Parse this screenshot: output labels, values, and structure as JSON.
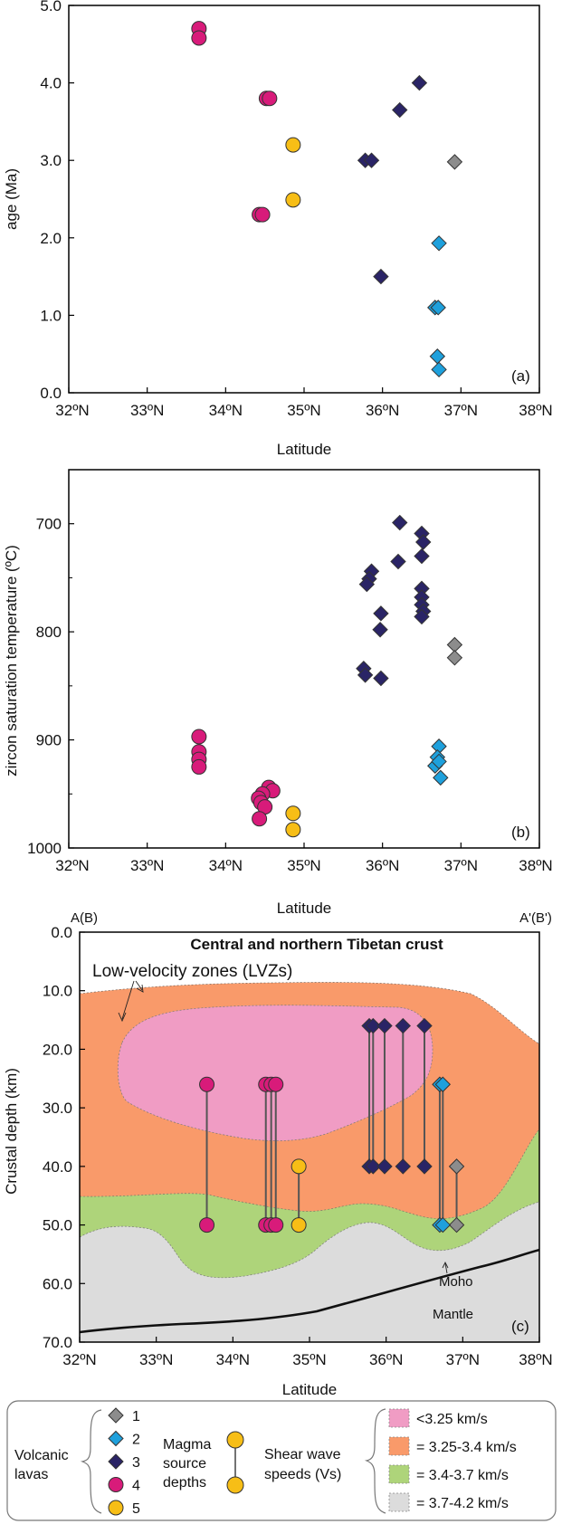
{
  "chart_data": [
    {
      "type": "scatter",
      "panel": "(a)",
      "xlabel": "Latitude",
      "ylabel": "age (Ma)",
      "xlim": [
        32,
        38
      ],
      "ylim": [
        0,
        5
      ],
      "x_tick_labels": [
        "32ºN",
        "33ºN",
        "34ºN",
        "35ºN",
        "36ºN",
        "37ºN",
        "38ºN"
      ],
      "y_tick_labels": [
        "0.0",
        "1.0",
        "2.0",
        "3.0",
        "4.0",
        "5.0"
      ],
      "series": [
        {
          "name": "1",
          "marker": "diamond",
          "color": "#8c8c8c",
          "points": [
            [
              36.92,
              2.98
            ]
          ]
        },
        {
          "name": "2",
          "marker": "diamond",
          "color": "#1ea0dc",
          "points": [
            [
              36.72,
              1.93
            ],
            [
              36.67,
              1.1
            ],
            [
              36.71,
              1.1
            ],
            [
              36.7,
              0.47
            ],
            [
              36.72,
              0.3
            ]
          ]
        },
        {
          "name": "3",
          "marker": "diamond",
          "color": "#2a2466",
          "points": [
            [
              36.47,
              4.0
            ],
            [
              36.22,
              3.65
            ],
            [
              35.78,
              3.0
            ],
            [
              35.86,
              3.0
            ],
            [
              35.98,
              1.5
            ]
          ]
        },
        {
          "name": "4",
          "marker": "circle",
          "color": "#d81b7a",
          "points": [
            [
              33.66,
              4.7
            ],
            [
              33.66,
              4.58
            ],
            [
              34.52,
              3.8
            ],
            [
              34.56,
              3.8
            ],
            [
              34.43,
              2.3
            ],
            [
              34.47,
              2.3
            ]
          ]
        },
        {
          "name": "5",
          "marker": "circle",
          "color": "#f7be16",
          "points": [
            [
              34.86,
              3.2
            ],
            [
              34.86,
              2.49
            ]
          ]
        }
      ]
    },
    {
      "type": "scatter",
      "panel": "(b)",
      "xlabel": "Latitude",
      "ylabel": "zircon saturation temperature (ºC)",
      "xlim": [
        32,
        38
      ],
      "ylim": [
        1000,
        650
      ],
      "inverted_y": true,
      "x_tick_labels": [
        "32ºN",
        "33ºN",
        "34ºN",
        "35ºN",
        "36ºN",
        "37ºN",
        "38ºN"
      ],
      "y_tick_labels": [
        "700",
        "800",
        "900",
        "1000"
      ],
      "series": [
        {
          "name": "1",
          "marker": "diamond",
          "color": "#8c8c8c",
          "points": [
            [
              36.92,
              812
            ],
            [
              36.92,
              824
            ]
          ]
        },
        {
          "name": "2",
          "marker": "diamond",
          "color": "#1ea0dc",
          "points": [
            [
              36.72,
              906
            ],
            [
              36.7,
              916
            ],
            [
              36.67,
              924
            ],
            [
              36.72,
              920
            ],
            [
              36.74,
              935
            ]
          ]
        },
        {
          "name": "3",
          "marker": "diamond",
          "color": "#2a2466",
          "points": [
            [
              36.22,
              699
            ],
            [
              36.5,
              709
            ],
            [
              36.52,
              717
            ],
            [
              36.2,
              735
            ],
            [
              36.5,
              730
            ],
            [
              35.86,
              744
            ],
            [
              35.83,
              751
            ],
            [
              35.8,
              756
            ],
            [
              36.5,
              760
            ],
            [
              36.5,
              768
            ],
            [
              36.5,
              775
            ],
            [
              36.52,
              781
            ],
            [
              36.5,
              786
            ],
            [
              35.98,
              783
            ],
            [
              35.97,
              798
            ],
            [
              35.76,
              834
            ],
            [
              35.78,
              840
            ],
            [
              35.98,
              843
            ]
          ]
        },
        {
          "name": "4",
          "marker": "circle",
          "color": "#d81b7a",
          "points": [
            [
              33.66,
              897
            ],
            [
              33.66,
              911
            ],
            [
              33.66,
              918
            ],
            [
              33.66,
              925
            ],
            [
              34.55,
              944
            ],
            [
              34.6,
              947
            ],
            [
              34.47,
              950
            ],
            [
              34.42,
              954
            ],
            [
              34.45,
              958
            ],
            [
              34.5,
              962
            ],
            [
              34.43,
              973
            ]
          ]
        },
        {
          "name": "5",
          "marker": "circle",
          "color": "#f7be16",
          "points": [
            [
              34.86,
              968
            ],
            [
              34.86,
              983
            ]
          ]
        }
      ]
    },
    {
      "type": "scatter",
      "panel": "(c)",
      "title": "Central and northern Tibetan crust",
      "xlabel": "Latitude",
      "ylabel": "Crustal depth (km)",
      "xlim": [
        32,
        38
      ],
      "ylim": [
        70,
        0
      ],
      "inverted_y": true,
      "x_tick_labels": [
        "32ºN",
        "33ºN",
        "34ºN",
        "35ºN",
        "36ºN",
        "37ºN",
        "38ºN"
      ],
      "y_tick_labels": [
        "0.0",
        "10.0",
        "20.0",
        "30.0",
        "40.0",
        "50.0",
        "60.0",
        "70.0"
      ],
      "section_labels": {
        "left": "A(B)",
        "right": "A'(B')"
      },
      "annotations": {
        "lvz": "Low-velocity zones (LVZs)",
        "moho": "Moho",
        "mantle": "Mantle"
      },
      "magma_source_depths": [
        {
          "series": "1",
          "color": "#8c8c8c",
          "marker": "diamond",
          "lat": 36.92,
          "top": 40,
          "bottom": 50
        },
        {
          "series": "2",
          "color": "#1ea0dc",
          "marker": "diamond",
          "lat": 36.7,
          "top": 26,
          "bottom": 50
        },
        {
          "series": "2",
          "color": "#1ea0dc",
          "marker": "diamond",
          "lat": 36.74,
          "top": 26,
          "bottom": 50
        },
        {
          "series": "3",
          "color": "#2a2466",
          "marker": "diamond",
          "lat": 35.78,
          "top": 16,
          "bottom": 40
        },
        {
          "series": "3",
          "color": "#2a2466",
          "marker": "diamond",
          "lat": 35.83,
          "top": 16,
          "bottom": 40
        },
        {
          "series": "3",
          "color": "#2a2466",
          "marker": "diamond",
          "lat": 35.98,
          "top": 16,
          "bottom": 40
        },
        {
          "series": "3",
          "color": "#2a2466",
          "marker": "diamond",
          "lat": 36.22,
          "top": 16,
          "bottom": 40
        },
        {
          "series": "3",
          "color": "#2a2466",
          "marker": "diamond",
          "lat": 36.5,
          "top": 16,
          "bottom": 40
        },
        {
          "series": "4",
          "color": "#d81b7a",
          "marker": "circle",
          "lat": 33.66,
          "top": 26,
          "bottom": 50
        },
        {
          "series": "4",
          "color": "#d81b7a",
          "marker": "circle",
          "lat": 34.43,
          "top": 26,
          "bottom": 50
        },
        {
          "series": "4",
          "color": "#d81b7a",
          "marker": "circle",
          "lat": 34.5,
          "top": 26,
          "bottom": 50
        },
        {
          "series": "4",
          "color": "#d81b7a",
          "marker": "circle",
          "lat": 34.56,
          "top": 26,
          "bottom": 50
        },
        {
          "series": "5",
          "color": "#f7be16",
          "marker": "circle",
          "lat": 34.86,
          "top": 40,
          "bottom": 50
        }
      ],
      "velocity_zones": [
        {
          "label": "<3.25 km/s",
          "color": "#f09cc4"
        },
        {
          "label": "= 3.25-3.4 km/s",
          "color": "#f99a6a"
        },
        {
          "label": "= 3.4-3.7 km/s",
          "color": "#aed47a"
        },
        {
          "label": "= 3.7-4.2 km/s",
          "color": "#dcdcdc"
        }
      ]
    }
  ],
  "legend": {
    "volcanic_lavas_label": "Volcanic lavas",
    "volcanic_lavas_label_line1": "Volcanic",
    "volcanic_lavas_label_line2": "lavas",
    "magma_label_line1": "Magma",
    "magma_label_line2": "source",
    "magma_label_line3": "depths",
    "shear_label_line1": "Shear wave",
    "shear_label_line2": "speeds (Vs)",
    "items": [
      {
        "label": "1",
        "marker": "diamond",
        "color": "#8c8c8c"
      },
      {
        "label": "2",
        "marker": "diamond",
        "color": "#1ea0dc"
      },
      {
        "label": "3",
        "marker": "diamond",
        "color": "#2a2466"
      },
      {
        "label": "4",
        "marker": "circle",
        "color": "#d81b7a"
      },
      {
        "label": "5",
        "marker": "circle",
        "color": "#f7be16"
      }
    ],
    "zones": [
      {
        "label": "<3.25 km/s",
        "color": "#f09cc4"
      },
      {
        "label": "= 3.25-3.4 km/s",
        "color": "#f99a6a"
      },
      {
        "label": "= 3.4-3.7 km/s",
        "color": "#aed47a"
      },
      {
        "label": "= 3.7-4.2 km/s",
        "color": "#dcdcdc"
      }
    ]
  }
}
